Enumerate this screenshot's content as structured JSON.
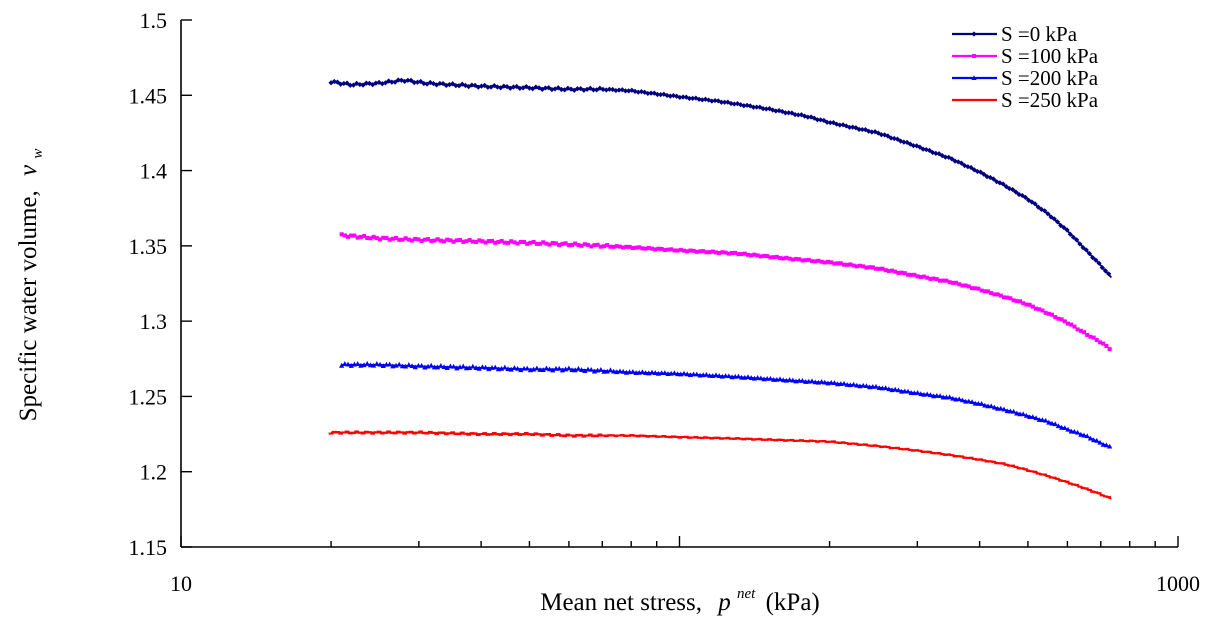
{
  "chart_data": {
    "type": "line",
    "xscale": "log",
    "xlim": [
      10,
      1000
    ],
    "ylim": [
      1.15,
      1.5
    ],
    "xticks": [
      {
        "value": 10,
        "label": "10"
      },
      {
        "value": 1000,
        "label": "1000"
      }
    ],
    "yticks": [
      {
        "value": 1.15,
        "label": "1.15"
      },
      {
        "value": 1.2,
        "label": "1.2"
      },
      {
        "value": 1.25,
        "label": "1.25"
      },
      {
        "value": 1.3,
        "label": "1.3"
      },
      {
        "value": 1.35,
        "label": "1.35"
      },
      {
        "value": 1.4,
        "label": "1.4"
      },
      {
        "value": 1.45,
        "label": "1.45"
      },
      {
        "value": 1.5,
        "label": "1.5"
      }
    ],
    "xlabel": {
      "main": "Mean net stress,",
      "symbol": "p",
      "superscript": "net",
      "unit": "(kPa)"
    },
    "ylabel": {
      "main": "Specific water volume,",
      "symbol": "v",
      "subscript": "w"
    },
    "grid": false,
    "legend_position": "top-right",
    "series": [
      {
        "name": "S =0 kPa",
        "color": "#000080",
        "marker": "diamond",
        "points": [
          [
            20,
            1.459
          ],
          [
            22,
            1.457
          ],
          [
            25,
            1.458
          ],
          [
            28,
            1.46
          ],
          [
            31,
            1.458
          ],
          [
            35,
            1.457
          ],
          [
            40,
            1.456
          ],
          [
            50,
            1.455
          ],
          [
            60,
            1.454
          ],
          [
            70,
            1.454
          ],
          [
            80,
            1.453
          ],
          [
            100,
            1.449
          ],
          [
            120,
            1.446
          ],
          [
            150,
            1.441
          ],
          [
            180,
            1.436
          ],
          [
            200,
            1.432
          ],
          [
            250,
            1.425
          ],
          [
            300,
            1.416
          ],
          [
            350,
            1.408
          ],
          [
            400,
            1.399
          ],
          [
            450,
            1.39
          ],
          [
            500,
            1.381
          ],
          [
            550,
            1.371
          ],
          [
            600,
            1.36
          ],
          [
            650,
            1.348
          ],
          [
            700,
            1.337
          ],
          [
            735,
            1.329
          ]
        ]
      },
      {
        "name": "S =100 kPa",
        "color": "#FF00FF",
        "marker": "square",
        "points": [
          [
            21,
            1.357
          ],
          [
            25,
            1.355
          ],
          [
            30,
            1.354
          ],
          [
            40,
            1.353
          ],
          [
            50,
            1.352
          ],
          [
            60,
            1.351
          ],
          [
            70,
            1.35
          ],
          [
            80,
            1.349
          ],
          [
            100,
            1.347
          ],
          [
            130,
            1.345
          ],
          [
            160,
            1.342
          ],
          [
            200,
            1.339
          ],
          [
            250,
            1.335
          ],
          [
            300,
            1.33
          ],
          [
            350,
            1.326
          ],
          [
            400,
            1.321
          ],
          [
            450,
            1.316
          ],
          [
            500,
            1.311
          ],
          [
            550,
            1.305
          ],
          [
            600,
            1.299
          ],
          [
            650,
            1.292
          ],
          [
            700,
            1.286
          ],
          [
            735,
            1.281
          ]
        ]
      },
      {
        "name": "S =200 kPa",
        "color": "#0000FF",
        "marker": "triangle",
        "points": [
          [
            21,
            1.271
          ],
          [
            25,
            1.271
          ],
          [
            30,
            1.27
          ],
          [
            40,
            1.269
          ],
          [
            50,
            1.268
          ],
          [
            60,
            1.268
          ],
          [
            70,
            1.267
          ],
          [
            80,
            1.266
          ],
          [
            100,
            1.265
          ],
          [
            130,
            1.263
          ],
          [
            160,
            1.261
          ],
          [
            200,
            1.259
          ],
          [
            250,
            1.256
          ],
          [
            300,
            1.252
          ],
          [
            350,
            1.249
          ],
          [
            400,
            1.245
          ],
          [
            450,
            1.241
          ],
          [
            500,
            1.237
          ],
          [
            550,
            1.233
          ],
          [
            600,
            1.228
          ],
          [
            650,
            1.224
          ],
          [
            700,
            1.219
          ],
          [
            735,
            1.216
          ]
        ]
      },
      {
        "name": "S =250 kPa",
        "color": "#FF0000",
        "marker": "dash",
        "points": [
          [
            20,
            1.226
          ],
          [
            25,
            1.226
          ],
          [
            30,
            1.226
          ],
          [
            40,
            1.225
          ],
          [
            50,
            1.225
          ],
          [
            60,
            1.224
          ],
          [
            70,
            1.224
          ],
          [
            80,
            1.224
          ],
          [
            100,
            1.223
          ],
          [
            130,
            1.222
          ],
          [
            160,
            1.221
          ],
          [
            200,
            1.22
          ],
          [
            250,
            1.217
          ],
          [
            300,
            1.214
          ],
          [
            350,
            1.211
          ],
          [
            400,
            1.208
          ],
          [
            450,
            1.205
          ],
          [
            500,
            1.201
          ],
          [
            550,
            1.197
          ],
          [
            600,
            1.193
          ],
          [
            650,
            1.189
          ],
          [
            700,
            1.185
          ],
          [
            735,
            1.182
          ]
        ]
      }
    ]
  }
}
